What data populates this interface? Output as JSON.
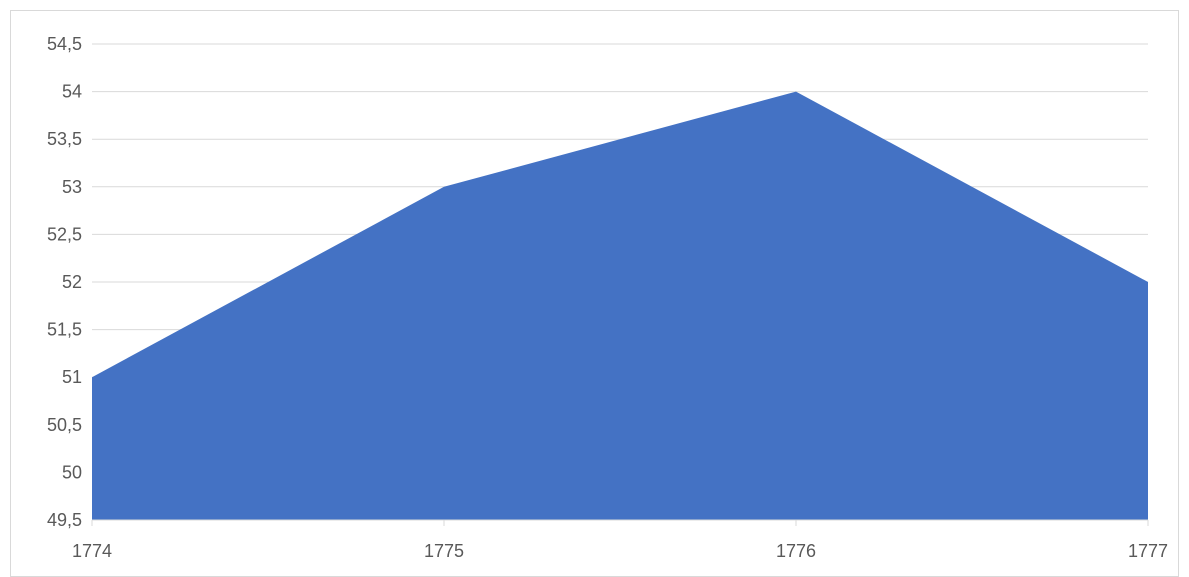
{
  "chart_data": {
    "type": "area",
    "x": [
      "1774",
      "1775",
      "1776",
      "1777"
    ],
    "series": [
      {
        "values": [
          51,
          53,
          54,
          52
        ],
        "color": "#4472c4"
      }
    ],
    "ylim": [
      49.5,
      54.5
    ],
    "yticks": [
      "49,5",
      "50",
      "50,5",
      "51",
      "51,5",
      "52",
      "52,5",
      "53",
      "53,5",
      "54",
      "54,5"
    ],
    "title": "",
    "xlabel": "",
    "ylabel": "",
    "grid": true,
    "legend": "none"
  }
}
